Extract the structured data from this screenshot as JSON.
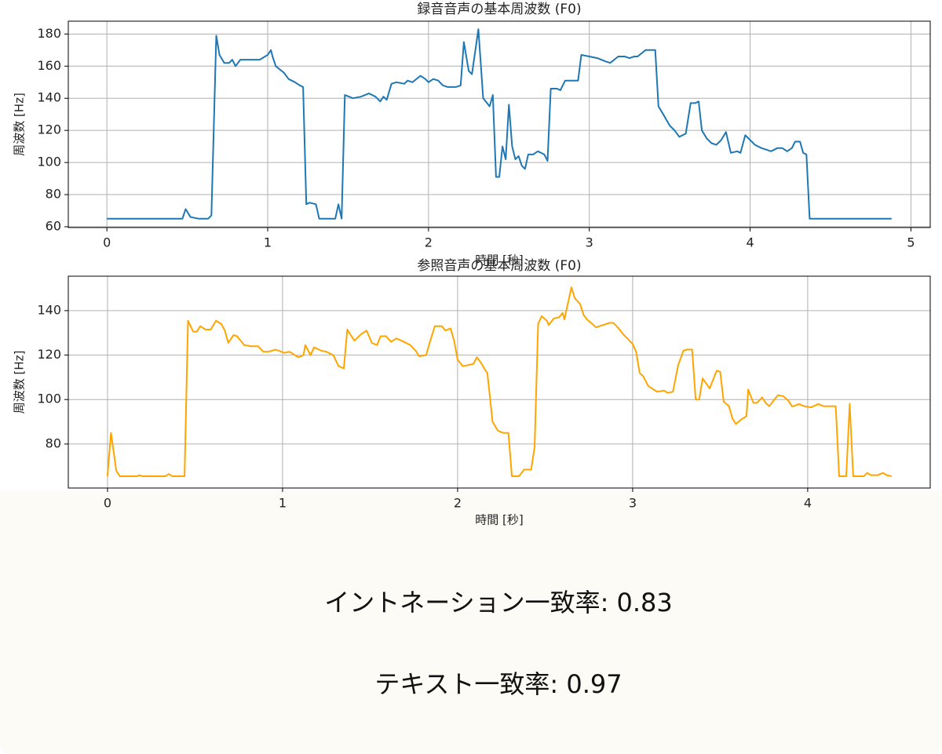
{
  "chart_data": [
    {
      "type": "line",
      "title": "録音音声の基本周波数 (F0)",
      "xlabel": "時間 [秒]",
      "ylabel": "周波数 [Hz]",
      "color": "#1f77b4",
      "grid": true,
      "xlim": [
        -0.24,
        5.12
      ],
      "ylim": [
        59.5,
        188
      ],
      "xticks": [
        0,
        1,
        2,
        3,
        4,
        5
      ],
      "yticks": [
        60,
        80,
        100,
        120,
        140,
        160,
        180
      ],
      "x": [
        0,
        0.47,
        0.49,
        0.52,
        0.57,
        0.63,
        0.65,
        0.68,
        0.7,
        0.73,
        0.76,
        0.78,
        0.8,
        0.83,
        0.9,
        0.95,
        1.0,
        1.02,
        1.03,
        1.05,
        1.1,
        1.13,
        1.17,
        1.2,
        1.22,
        1.24,
        1.26,
        1.3,
        1.32,
        1.38,
        1.42,
        1.44,
        1.46,
        1.48,
        1.53,
        1.58,
        1.63,
        1.67,
        1.7,
        1.72,
        1.74,
        1.77,
        1.8,
        1.85,
        1.87,
        1.9,
        1.95,
        1.98,
        2.0,
        2.03,
        2.06,
        2.09,
        2.12,
        2.17,
        2.2,
        2.22,
        2.25,
        2.27,
        2.31,
        2.34,
        2.38,
        2.4,
        2.42,
        2.44,
        2.46,
        2.48,
        2.5,
        2.52,
        2.54,
        2.56,
        2.58,
        2.6,
        2.62,
        2.65,
        2.68,
        2.72,
        2.74,
        2.76,
        2.8,
        2.82,
        2.85,
        2.9,
        2.93,
        2.95,
        3.0,
        3.05,
        3.1,
        3.13,
        3.18,
        3.22,
        3.25,
        3.28,
        3.3,
        3.35,
        3.41,
        3.43,
        3.46,
        3.5,
        3.53,
        3.56,
        3.6,
        3.63,
        3.66,
        3.68,
        3.7,
        3.73,
        3.76,
        3.79,
        3.82,
        3.85,
        3.88,
        3.92,
        3.94,
        3.97,
        4.0,
        4.03,
        4.07,
        4.1,
        4.13,
        4.17,
        4.2,
        4.23,
        4.26,
        4.28,
        4.31,
        4.33,
        4.35,
        4.37,
        4.88
      ],
      "values": [
        65,
        65,
        71,
        66,
        65,
        65,
        67,
        179,
        167,
        162,
        162,
        164,
        160,
        164,
        164,
        164,
        167,
        170,
        166,
        160,
        156,
        152,
        150,
        148,
        147,
        74,
        75,
        74,
        65,
        65,
        65,
        74,
        65,
        142,
        140,
        141,
        143,
        141,
        138,
        141,
        139,
        149,
        150,
        149,
        151,
        150,
        154,
        152,
        150,
        152,
        151,
        148,
        147,
        147,
        148,
        175,
        157,
        155,
        183,
        140,
        135,
        142,
        91,
        91,
        110,
        102,
        136,
        110,
        102,
        104,
        98,
        96,
        105,
        105,
        107,
        105,
        101,
        146,
        146,
        145,
        151,
        151,
        151,
        167,
        166,
        165,
        163,
        162,
        166,
        166,
        165,
        166,
        166,
        170,
        170,
        135,
        130,
        123,
        120,
        116,
        118,
        137,
        137,
        138,
        120,
        115,
        112,
        111,
        114,
        119,
        106,
        107,
        106,
        117,
        114,
        111,
        109,
        108,
        107,
        109,
        109,
        107,
        109,
        113,
        113,
        106,
        105,
        65,
        65
      ]
    },
    {
      "type": "line",
      "title": "参照音声の基本周波数 (F0)",
      "xlabel": "時間 [秒]",
      "ylabel": "周波数 [Hz]",
      "color": "#ffa500",
      "grid": true,
      "xlim": [
        -0.224,
        4.7
      ],
      "ylim": [
        60.2,
        155.5
      ],
      "xticks": [
        0,
        1,
        2,
        3,
        4
      ],
      "yticks": [
        80,
        100,
        120,
        140
      ],
      "x": [
        0,
        0.02,
        0.05,
        0.07,
        0.17,
        0.18,
        0.2,
        0.33,
        0.35,
        0.37,
        0.44,
        0.46,
        0.49,
        0.51,
        0.53,
        0.56,
        0.59,
        0.62,
        0.65,
        0.67,
        0.69,
        0.72,
        0.74,
        0.78,
        0.82,
        0.86,
        0.89,
        0.92,
        0.96,
        1.01,
        1.04,
        1.09,
        1.12,
        1.13,
        1.16,
        1.18,
        1.22,
        1.25,
        1.29,
        1.32,
        1.35,
        1.37,
        1.41,
        1.45,
        1.48,
        1.51,
        1.54,
        1.56,
        1.59,
        1.62,
        1.65,
        1.68,
        1.73,
        1.76,
        1.78,
        1.82,
        1.84,
        1.87,
        1.91,
        1.93,
        1.96,
        1.98,
        2.0,
        2.03,
        2.06,
        2.09,
        2.11,
        2.13,
        2.16,
        2.17,
        2.2,
        2.23,
        2.26,
        2.29,
        2.31,
        2.35,
        2.38,
        2.42,
        2.44,
        2.46,
        2.48,
        2.51,
        2.52,
        2.55,
        2.58,
        2.6,
        2.61,
        2.65,
        2.67,
        2.7,
        2.72,
        2.74,
        2.77,
        2.79,
        2.83,
        2.87,
        2.89,
        2.92,
        2.95,
        2.97,
        3.0,
        3.02,
        3.04,
        3.06,
        3.09,
        3.12,
        3.14,
        3.18,
        3.2,
        3.23,
        3.26,
        3.29,
        3.31,
        3.34,
        3.36,
        3.38,
        3.4,
        3.44,
        3.48,
        3.5,
        3.52,
        3.55,
        3.57,
        3.59,
        3.62,
        3.65,
        3.66,
        3.69,
        3.71,
        3.74,
        3.76,
        3.78,
        3.81,
        3.83,
        3.86,
        3.89,
        3.91,
        3.92,
        3.95,
        3.98,
        4.02,
        4.06,
        4.09,
        4.14,
        4.16,
        4.18,
        4.22,
        4.24,
        4.26,
        4.32,
        4.34,
        4.36,
        4.4,
        4.43,
        4.45,
        4.48
      ],
      "values": [
        65.5,
        85,
        68,
        65.5,
        65.5,
        66,
        65.5,
        65.5,
        66.5,
        65.5,
        65.5,
        135.5,
        130.5,
        130.5,
        133,
        131.5,
        131.5,
        135.5,
        134,
        131,
        125.5,
        129,
        128.5,
        124.5,
        124,
        124,
        121.5,
        121.5,
        122.5,
        121,
        121.5,
        119,
        120,
        124.5,
        120,
        123.5,
        122,
        121.5,
        120,
        115,
        114,
        131.5,
        126.5,
        129.5,
        131,
        125.5,
        124.5,
        128.5,
        128.5,
        126,
        127.5,
        126.5,
        124.5,
        122,
        119.5,
        120,
        125.5,
        133,
        133,
        131,
        132,
        126.5,
        118,
        115,
        115.5,
        116,
        119,
        117,
        113,
        112,
        90,
        86,
        85,
        85,
        65.5,
        65.5,
        68.5,
        68.5,
        78.5,
        134,
        137.5,
        135.5,
        133.5,
        136.5,
        137,
        139,
        136,
        150.5,
        145.5,
        143,
        138,
        136,
        134,
        132.5,
        133.5,
        134.5,
        134.5,
        132,
        129,
        127.5,
        125,
        121.5,
        112,
        110.5,
        106,
        104.5,
        103.5,
        104,
        103,
        103.5,
        115.5,
        122,
        122.5,
        122.5,
        100,
        100,
        109.5,
        105,
        113,
        112.5,
        99,
        97,
        91.5,
        89,
        91,
        92.5,
        104.5,
        98.5,
        98.5,
        101,
        98.5,
        97,
        100,
        102,
        101.5,
        99.5,
        97,
        97,
        98,
        97,
        96.5,
        98,
        97,
        97,
        97,
        65.5,
        65.5,
        98,
        65.5,
        65.5,
        67,
        66,
        66,
        67,
        66,
        65.5
      ]
    }
  ],
  "results": [
    "イントネーション一致率: 0.83",
    "テキスト一致率: 0.97"
  ]
}
